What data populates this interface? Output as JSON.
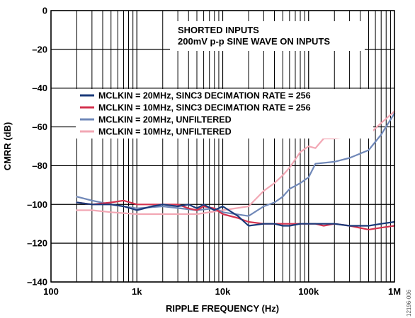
{
  "figure_id": "12196-006",
  "chart_data": {
    "type": "line",
    "title": "",
    "xlabel": "RIPPLE FREQUENCY (Hz)",
    "ylabel": "CMRR (dB)",
    "x_scale": "log",
    "xlim": [
      100,
      1000000
    ],
    "ylim": [
      -140,
      0
    ],
    "x_ticks": [
      {
        "value": 100,
        "label": "100"
      },
      {
        "value": 1000,
        "label": "1k"
      },
      {
        "value": 10000,
        "label": "10k"
      },
      {
        "value": 100000,
        "label": "100k"
      },
      {
        "value": 1000000,
        "label": "1M"
      }
    ],
    "y_ticks": [
      {
        "value": 0,
        "label": "0"
      },
      {
        "value": -20,
        "label": "–20"
      },
      {
        "value": -40,
        "label": "–40"
      },
      {
        "value": -60,
        "label": "–60"
      },
      {
        "value": -80,
        "label": "–80"
      },
      {
        "value": -100,
        "label": "–100"
      },
      {
        "value": -120,
        "label": "–120"
      },
      {
        "value": -140,
        "label": "–140"
      }
    ],
    "grid": true,
    "annotations": [
      "SHORTED INPUTS",
      "200mV p-p SINE WAVE ON INPUTS"
    ],
    "legend_position": "center-right",
    "series": [
      {
        "name": "MCLKIN = 20MHz, SINC3 DECIMATION RATE = 256",
        "color": "#1a3a7a",
        "x": [
          200,
          300,
          500,
          700,
          1000,
          1500,
          2000,
          3000,
          4000,
          5000,
          6000,
          8000,
          10000,
          15000,
          20000,
          30000,
          40000,
          50000,
          60000,
          80000,
          100000,
          120000,
          150000,
          200000,
          300000,
          500000,
          700000,
          1000000
        ],
        "y": [
          -99,
          -100,
          -100,
          -101,
          -103,
          -101,
          -100,
          -101,
          -100,
          -102,
          -100,
          -103,
          -101,
          -106,
          -111,
          -110,
          -110,
          -111,
          -111,
          -110,
          -110,
          -110,
          -110,
          -110,
          -111,
          -111,
          -110,
          -109
        ]
      },
      {
        "name": "MCLKIN = 10MHz, SINC3 DECIMATION RATE = 256",
        "color": "#d4334f",
        "x": [
          200,
          300,
          500,
          700,
          1000,
          1500,
          2000,
          3000,
          4000,
          5000,
          6000,
          8000,
          10000,
          15000,
          20000,
          30000,
          40000,
          50000,
          60000,
          80000,
          100000,
          120000,
          150000,
          200000,
          300000,
          500000,
          700000,
          1000000
        ],
        "y": [
          -99,
          -100,
          -99,
          -98,
          -100,
          -100,
          -100,
          -100,
          -102,
          -103,
          -101,
          -102,
          -105,
          -107,
          -109,
          -110,
          -110,
          -110,
          -110,
          -110,
          -110,
          -110,
          -111,
          -110,
          -111,
          -113,
          -112,
          -111
        ]
      },
      {
        "name": "MCLKIN = 20MHz, UNFILTERED",
        "color": "#7088b8",
        "x": [
          200,
          300,
          500,
          1000,
          2000,
          5000,
          8000,
          10000,
          20000,
          30000,
          40000,
          50000,
          60000,
          80000,
          100000,
          120000,
          200000,
          300000,
          500000,
          700000,
          1000000
        ],
        "y": [
          -96,
          -98,
          -100,
          -102,
          -101,
          -103,
          -102,
          -104,
          -106,
          -101,
          -99,
          -96,
          -92,
          -89,
          -86,
          -79,
          -78,
          -76,
          -72,
          -64,
          -53
        ]
      },
      {
        "name": "MCLKIN = 10MHz, UNFILTERED",
        "color": "#f2a7b4",
        "x": [
          200,
          300,
          500,
          1000,
          2000,
          5000,
          10000,
          20000,
          30000,
          40000,
          50000,
          60000,
          80000,
          100000,
          120000,
          150000,
          200000,
          300000,
          500000,
          700000,
          1000000
        ],
        "y": [
          -103,
          -103,
          -104,
          -105,
          -105,
          -105,
          -103,
          -101,
          -93,
          -89,
          -85,
          -81,
          -73,
          -70,
          -71,
          -66,
          -66,
          -65,
          -64,
          -58,
          -52
        ]
      }
    ]
  }
}
